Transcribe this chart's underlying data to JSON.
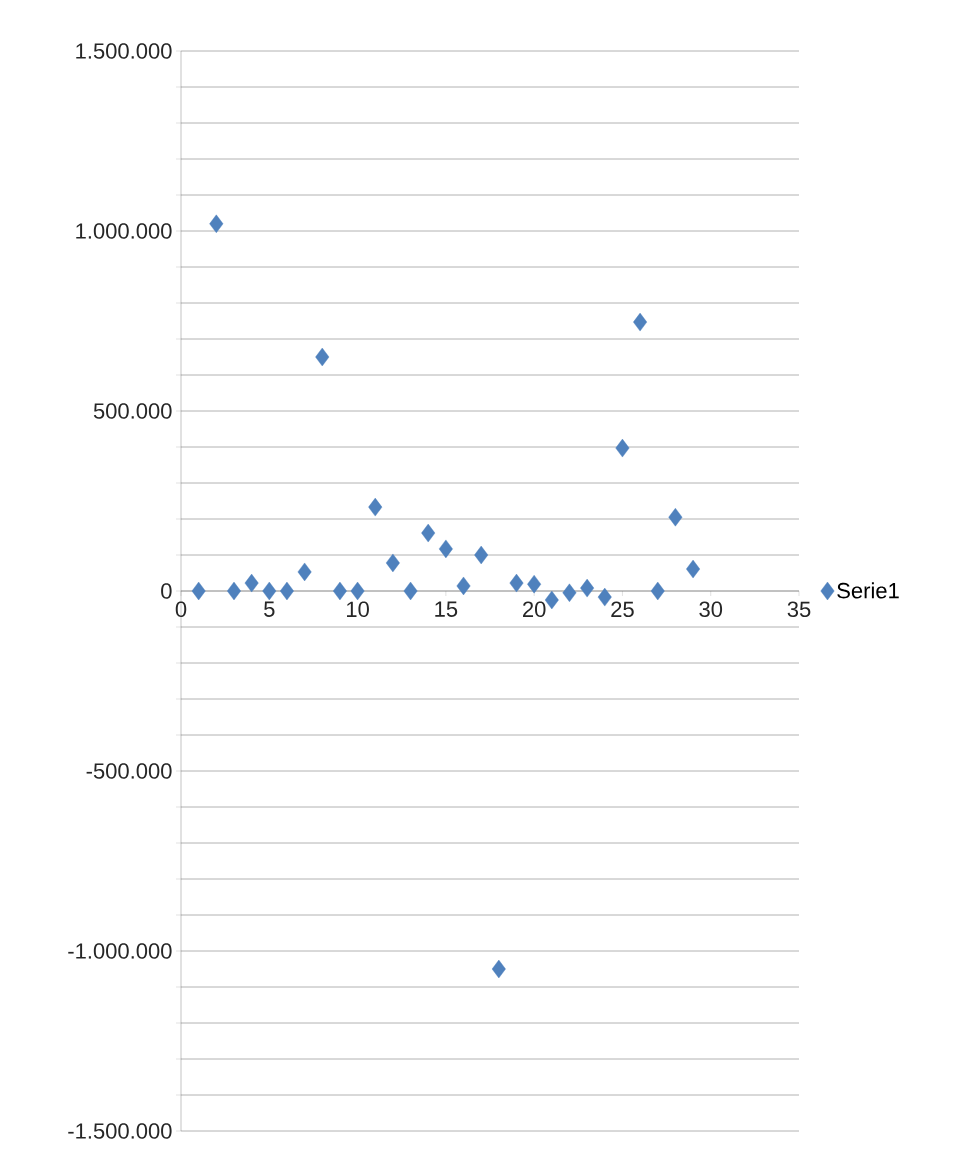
{
  "chart_data": {
    "type": "scatter",
    "marker": "diamond",
    "legend": "right",
    "grid": "y",
    "x": [
      1,
      2,
      3,
      4,
      5,
      6,
      7,
      8,
      9,
      10,
      11,
      12,
      13,
      14,
      15,
      16,
      17,
      18,
      19,
      20,
      21,
      22,
      23,
      24,
      25,
      26,
      27,
      28,
      29
    ],
    "series": [
      {
        "name": "Serie1",
        "color": "#4f81bd",
        "values": [
          0,
          1020000,
          0,
          22000,
          0,
          0,
          53000,
          650000,
          0,
          0,
          233000,
          78000,
          0,
          161000,
          117000,
          14000,
          100000,
          -1050000,
          22000,
          19000,
          -25000,
          -5000,
          8000,
          -17000,
          397000,
          747000,
          0,
          205000,
          61000
        ]
      }
    ],
    "xlim": [
      0,
      35
    ],
    "xticks": [
      0,
      5,
      10,
      15,
      20,
      25,
      30,
      35
    ],
    "ylim": [
      -1500000,
      1500000
    ],
    "yticks": [
      {
        "value": -1500000,
        "label": "-1.500.000"
      },
      {
        "value": -1400000,
        "label": null
      },
      {
        "value": -1300000,
        "label": null
      },
      {
        "value": -1200000,
        "label": null
      },
      {
        "value": -1100000,
        "label": null
      },
      {
        "value": -1000000,
        "label": "-1.000.000"
      },
      {
        "value": -900000,
        "label": null
      },
      {
        "value": -800000,
        "label": null
      },
      {
        "value": -700000,
        "label": null
      },
      {
        "value": -600000,
        "label": null
      },
      {
        "value": -500000,
        "label": "-500.000"
      },
      {
        "value": -400000,
        "label": null
      },
      {
        "value": -300000,
        "label": null
      },
      {
        "value": -200000,
        "label": null
      },
      {
        "value": -100000,
        "label": null
      },
      {
        "value": 0,
        "label": "0"
      },
      {
        "value": 100000,
        "label": null
      },
      {
        "value": 200000,
        "label": null
      },
      {
        "value": 300000,
        "label": null
      },
      {
        "value": 400000,
        "label": null
      },
      {
        "value": 500000,
        "label": "500.000"
      },
      {
        "value": 600000,
        "label": null
      },
      {
        "value": 700000,
        "label": null
      },
      {
        "value": 800000,
        "label": null
      },
      {
        "value": 900000,
        "label": null
      },
      {
        "value": 1000000,
        "label": "1.000.000"
      },
      {
        "value": 1100000,
        "label": null
      },
      {
        "value": 1200000,
        "label": null
      },
      {
        "value": 1300000,
        "label": null
      },
      {
        "value": 1400000,
        "label": null
      },
      {
        "value": 1500000,
        "label": "1.500.000"
      }
    ]
  }
}
